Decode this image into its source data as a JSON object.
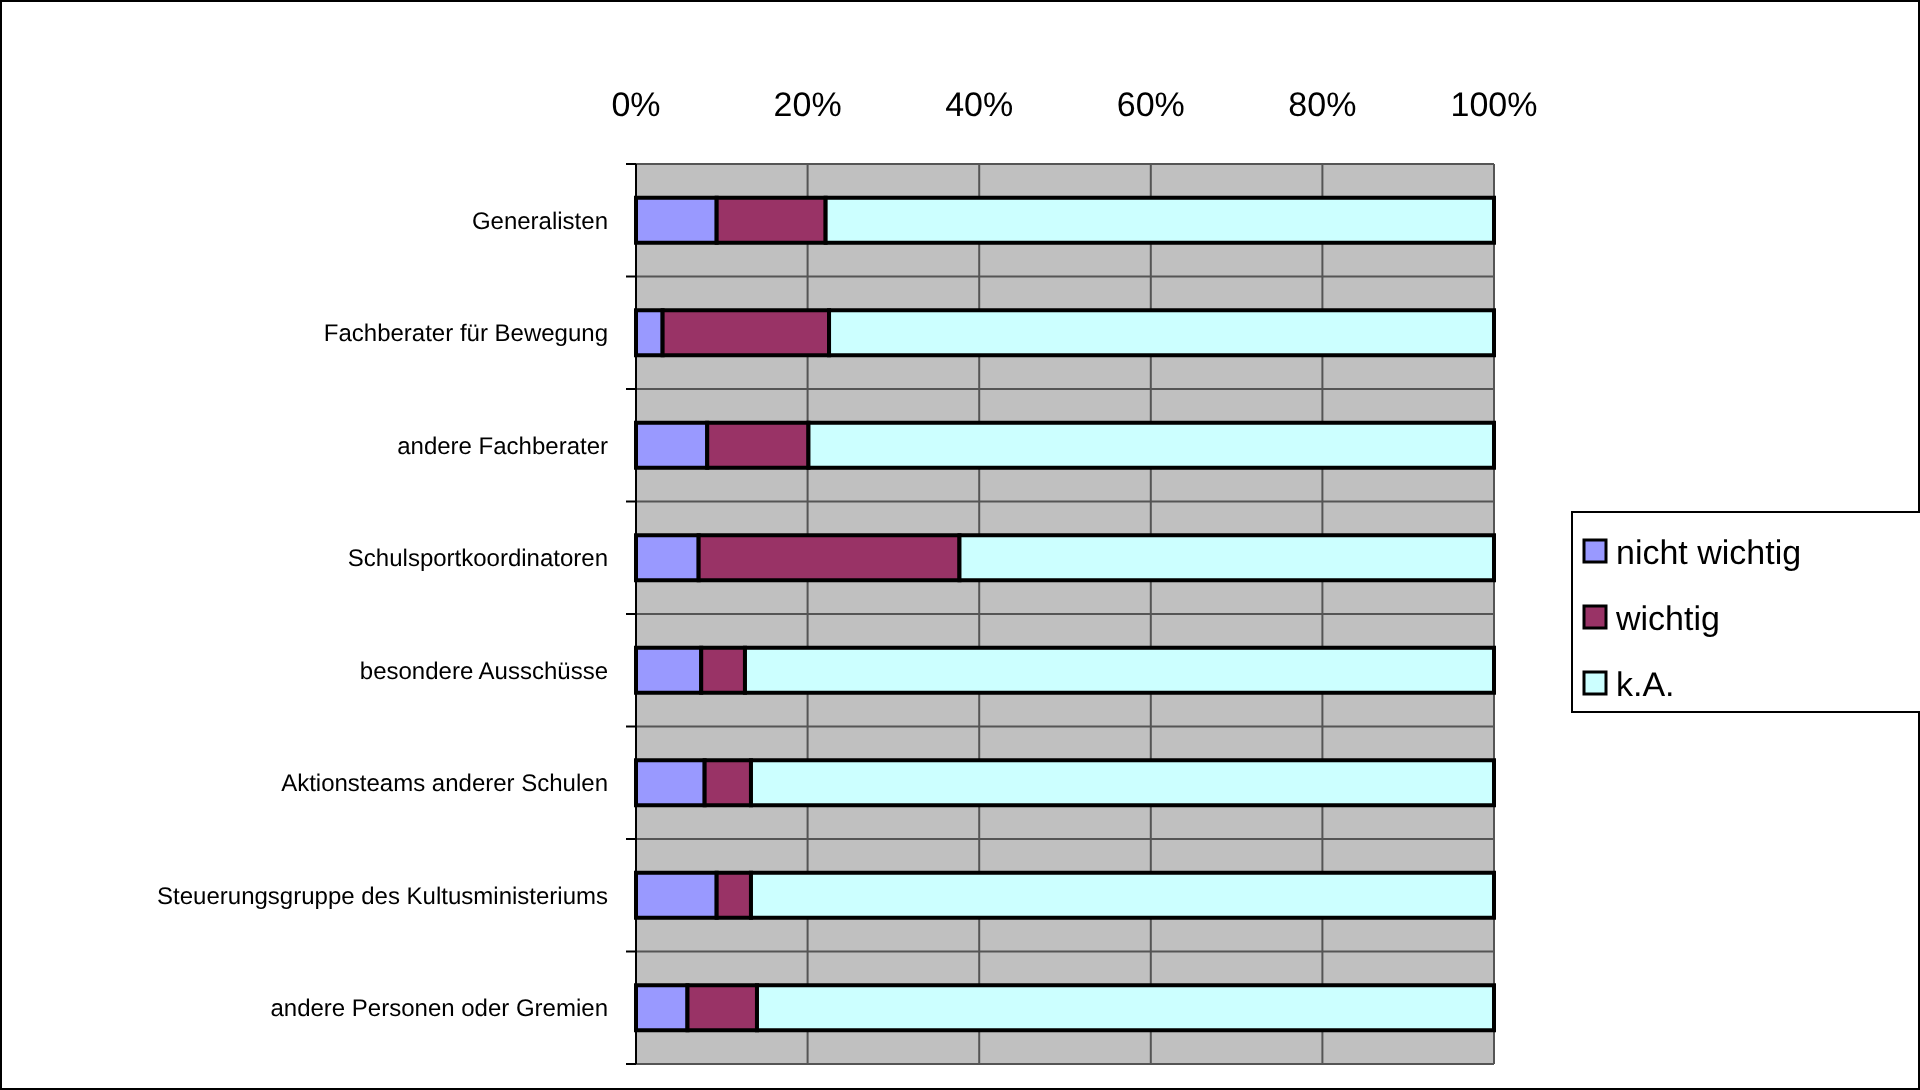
{
  "chart_data": {
    "type": "bar",
    "orientation": "horizontal",
    "stacked": true,
    "categories": [
      "Generalisten",
      "Fachberater für Bewegung",
      "andere Fachberater",
      "Schulsportkoordinatoren",
      "besondere Ausschüsse",
      "Aktionsteams anderer Schulen",
      "Steuerungsgruppe des Kultusministeriums",
      "andere Personen oder Gremien"
    ],
    "series": [
      {
        "name": "nicht wichtig",
        "color": "#9999ff",
        "values": [
          9.4,
          3.1,
          8.3,
          7.3,
          7.6,
          8.0,
          9.4,
          6.0
        ]
      },
      {
        "name": "wichtig",
        "color": "#993366",
        "values": [
          12.7,
          19.4,
          11.8,
          30.4,
          5.1,
          5.4,
          4.0,
          8.1
        ]
      },
      {
        "name": "k.A.",
        "color": "#ccffff",
        "values": [
          77.9,
          77.5,
          79.9,
          62.3,
          87.3,
          86.6,
          86.6,
          85.9
        ]
      }
    ],
    "xlim": [
      0,
      100
    ],
    "xticks": [
      {
        "value": 0,
        "label": "0%"
      },
      {
        "value": 20,
        "label": "20%"
      },
      {
        "value": 40,
        "label": "40%"
      },
      {
        "value": 60,
        "label": "60%"
      },
      {
        "value": 80,
        "label": "80%"
      },
      {
        "value": 100,
        "label": "100%"
      }
    ],
    "grid": true,
    "legend": "right"
  }
}
